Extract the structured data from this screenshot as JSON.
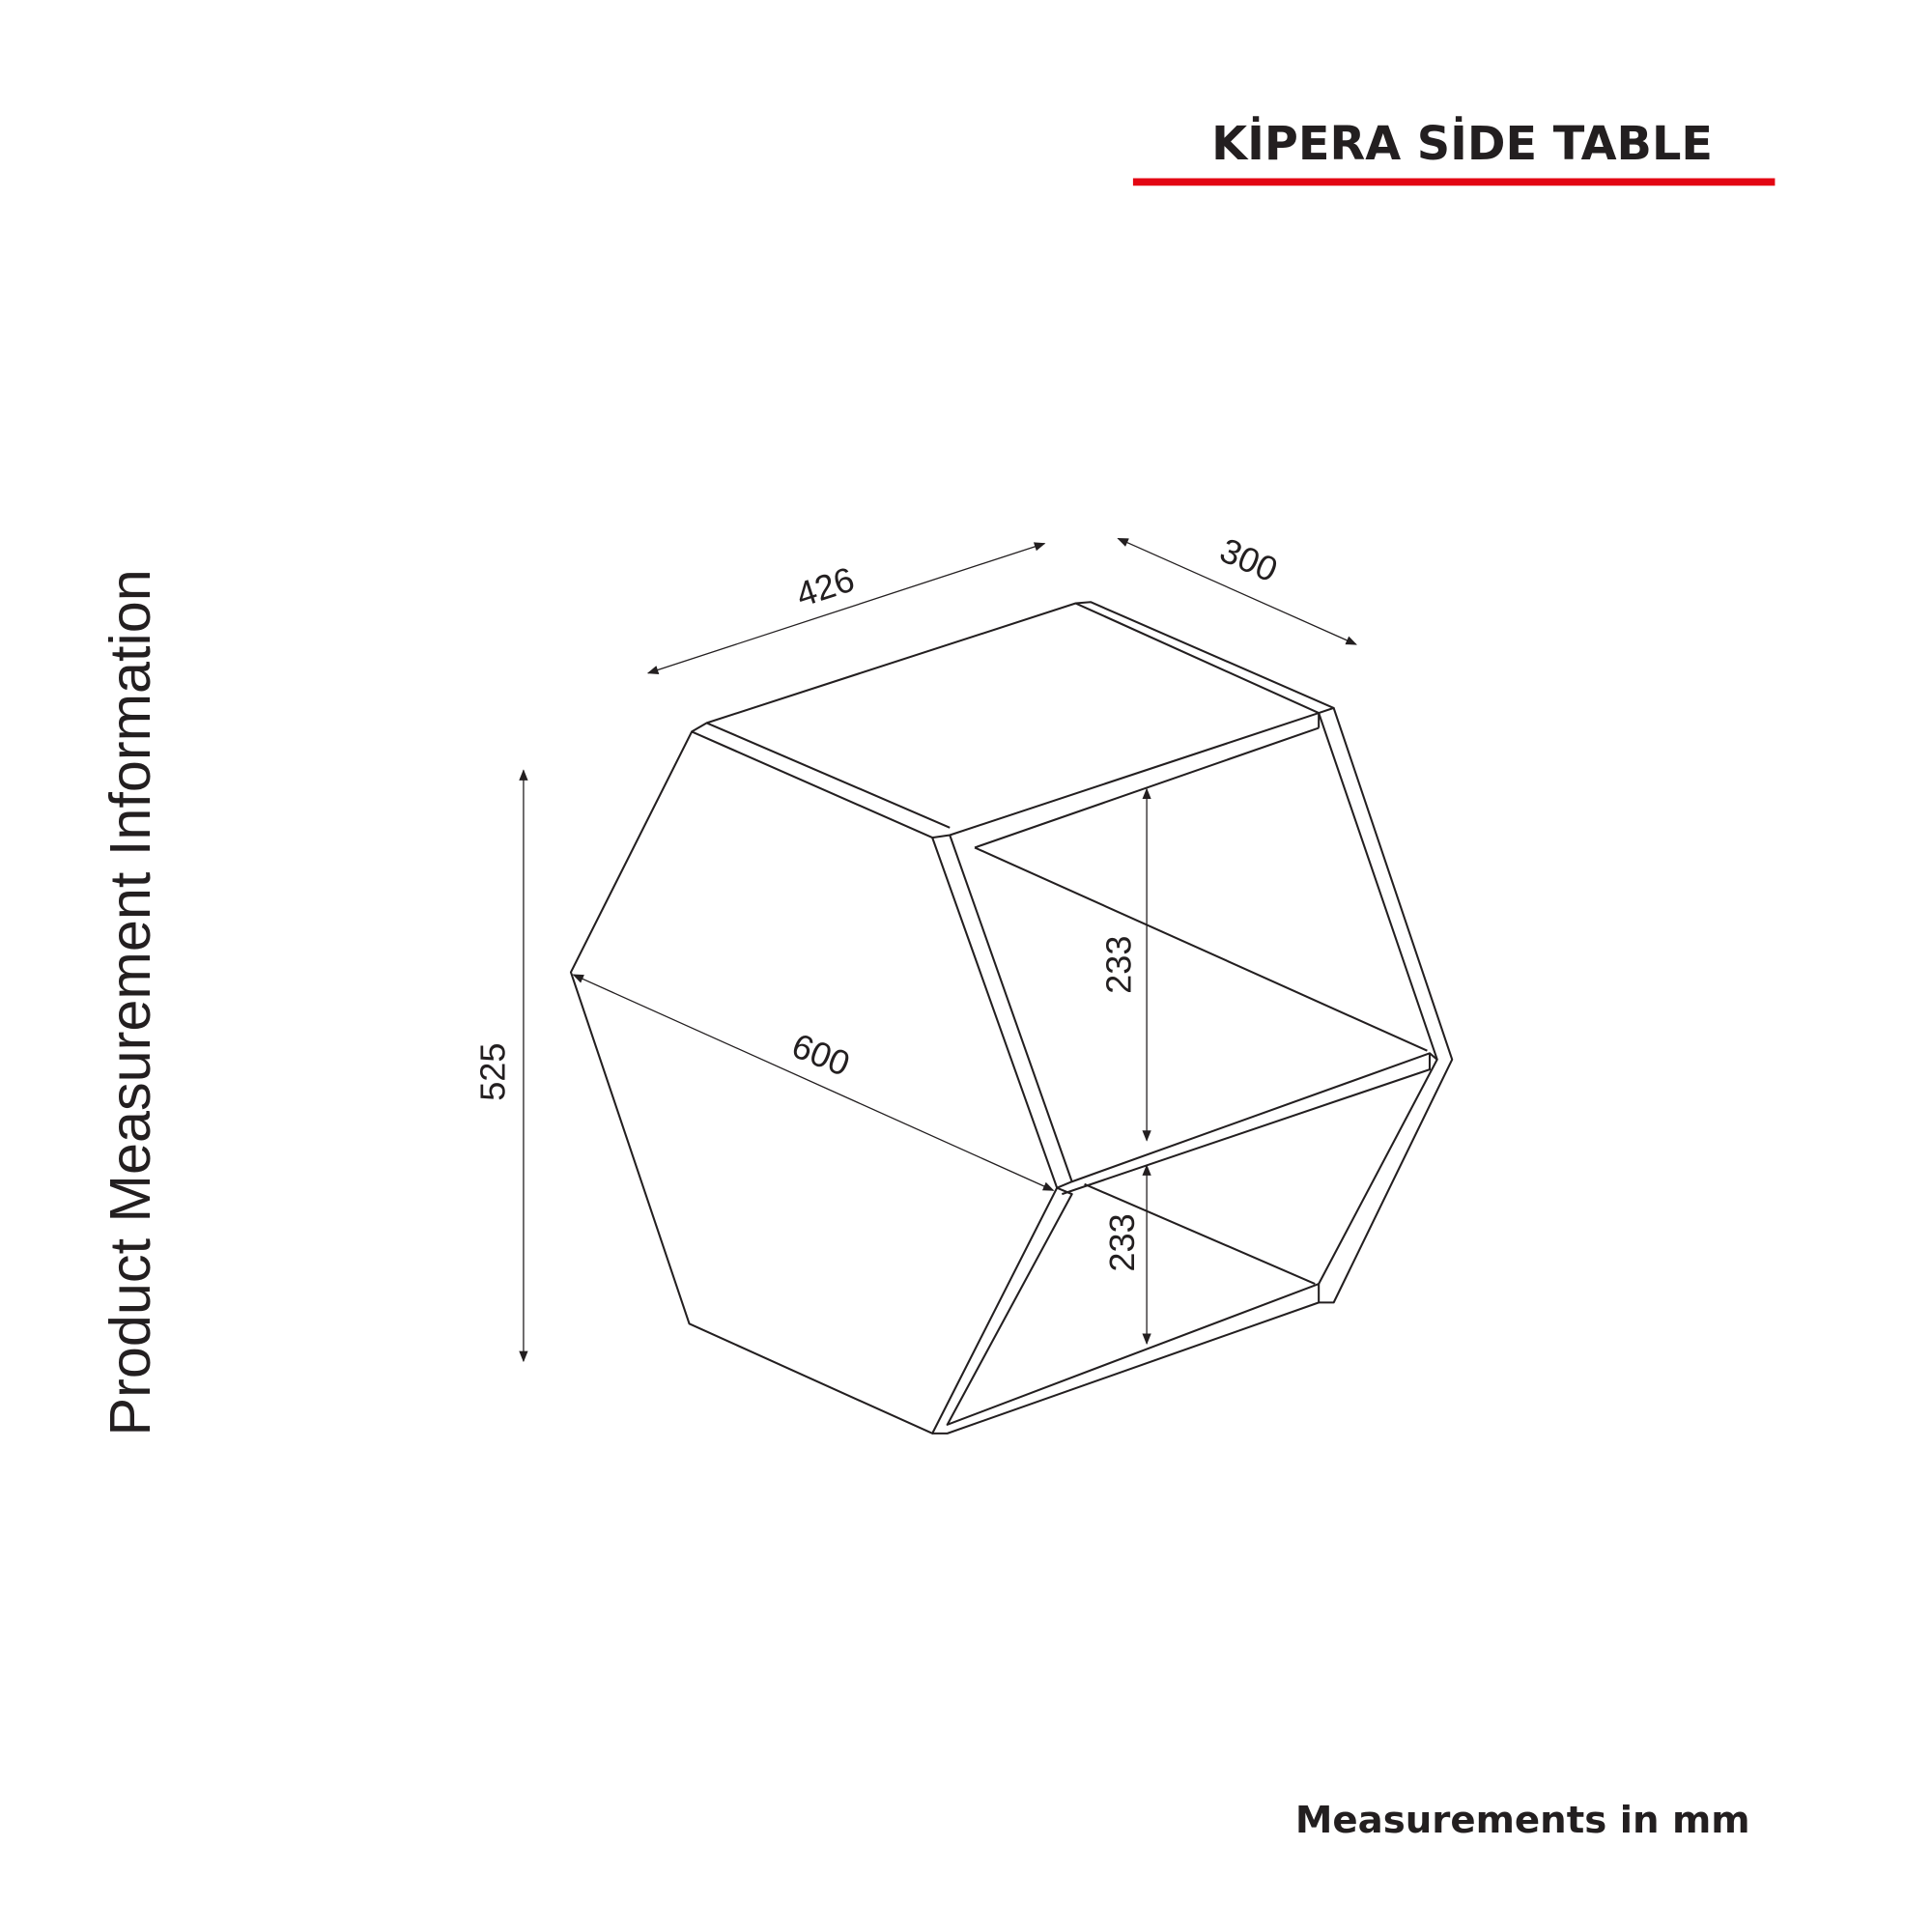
{
  "header": {
    "title": "KİPERA SİDE TABLE",
    "accent_color": "#e30613"
  },
  "side_label": "Product Measurement Information",
  "footer_note": "Measurements in mm",
  "dimensions": {
    "width": "426",
    "depth": "300",
    "height": "525",
    "diagonal": "600",
    "upper_shelf": "233",
    "lower_shelf": "233"
  }
}
